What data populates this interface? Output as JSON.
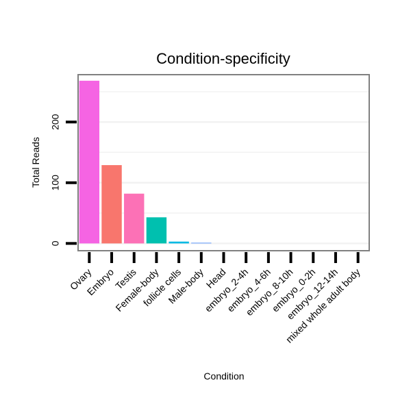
{
  "chart_data": {
    "type": "bar",
    "title": "Condition-specificity",
    "xlabel": "Condition",
    "ylabel": "Total Reads",
    "categories": [
      "Ovary",
      "Embryo",
      "Testis",
      "Female-body",
      "follicle cells",
      "Male-body",
      "Head",
      "embryo_2-4h",
      "embryo_4-6h",
      "embryo_8-10h",
      "embryo_0-2h",
      "embryo_12-14h",
      "mixed whole adult body"
    ],
    "values": [
      268,
      129,
      82,
      43,
      3,
      1,
      0,
      0,
      0,
      0,
      0,
      0,
      0
    ],
    "colors": [
      "#f564e3",
      "#f8766d",
      "#fc71b6",
      "#00c0af",
      "#00b9e3",
      "#619cff",
      "#00ba38",
      "#93aa00",
      "#b79f00",
      "#de8c00",
      "#00c1a3",
      "#00bfc4",
      "#00a9ff"
    ],
    "ylim": [
      -12,
      278
    ],
    "yticks": [
      0,
      100,
      200
    ],
    "grid": true,
    "legend": "none"
  }
}
